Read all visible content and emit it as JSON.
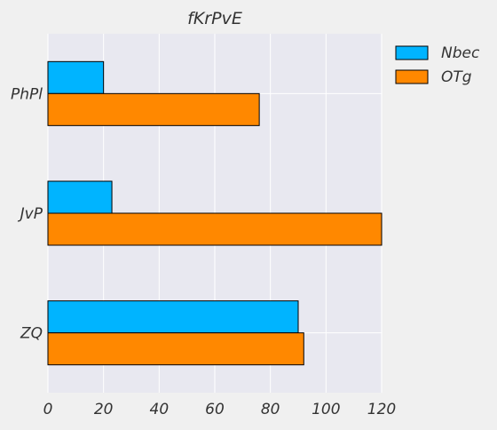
{
  "chart_data": {
    "type": "bar",
    "orientation": "horizontal",
    "title": "fKrPvE",
    "xlabel": "",
    "ylabel": "",
    "categories": [
      "PhPl",
      "JvP",
      "ZQ"
    ],
    "series": [
      {
        "name": "Nbec",
        "values": [
          20,
          23,
          90
        ],
        "color": "#00b4ff"
      },
      {
        "name": "OTg",
        "values": [
          76,
          120,
          92
        ],
        "color": "#ff8800"
      }
    ],
    "xlim": [
      0,
      120
    ],
    "xticks": [
      0,
      20,
      40,
      60,
      80,
      100,
      120
    ],
    "grid": true,
    "legend": "outside-top-right"
  }
}
